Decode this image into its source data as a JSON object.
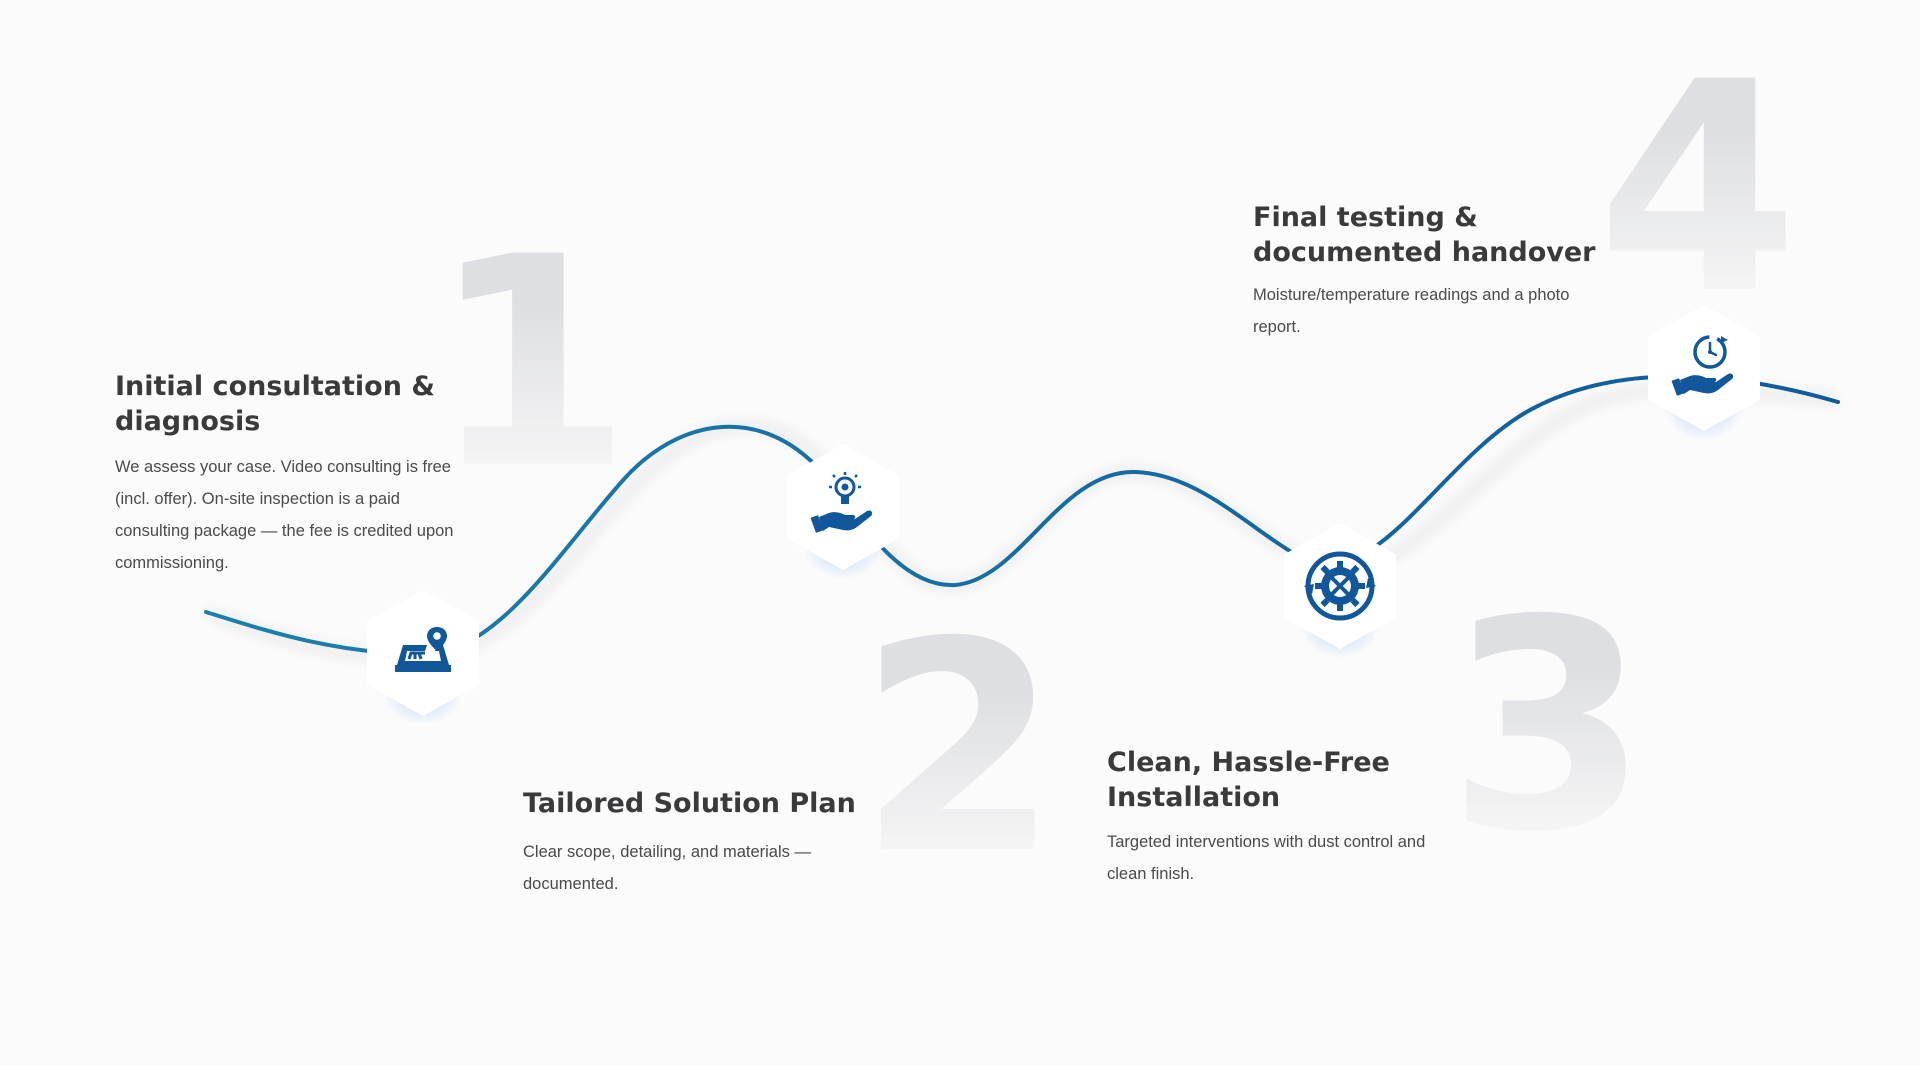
{
  "steps": [
    {
      "number": "1",
      "title": "Initial consultation & diagnosis",
      "description": "We assess your case. Video consulting is free (incl. offer). On-site inspection is a paid consulting package — the fee is credited upon commissioning.",
      "icon": "map-location-icon"
    },
    {
      "number": "2",
      "title": "Tailored Solution Plan",
      "description": "Clear scope, detailing, and materials — documented.",
      "icon": "idea-hand-icon"
    },
    {
      "number": "3",
      "title": "Clean, Hassle-Free Installation",
      "description": "Targeted interventions with dust control and clean finish.",
      "icon": "gear-tools-icon"
    },
    {
      "number": "4",
      "title": "Final testing & documented handover",
      "description": "Moisture/temperature readings and a photo report.",
      "icon": "clock-hand-icon"
    }
  ],
  "colors": {
    "curve_start": "#1a7fad",
    "curve_end": "#0f5a9e",
    "icon": "#11579c",
    "title": "#3a3a3c",
    "text": "#4a4a4c",
    "number": "#dedfe2"
  }
}
